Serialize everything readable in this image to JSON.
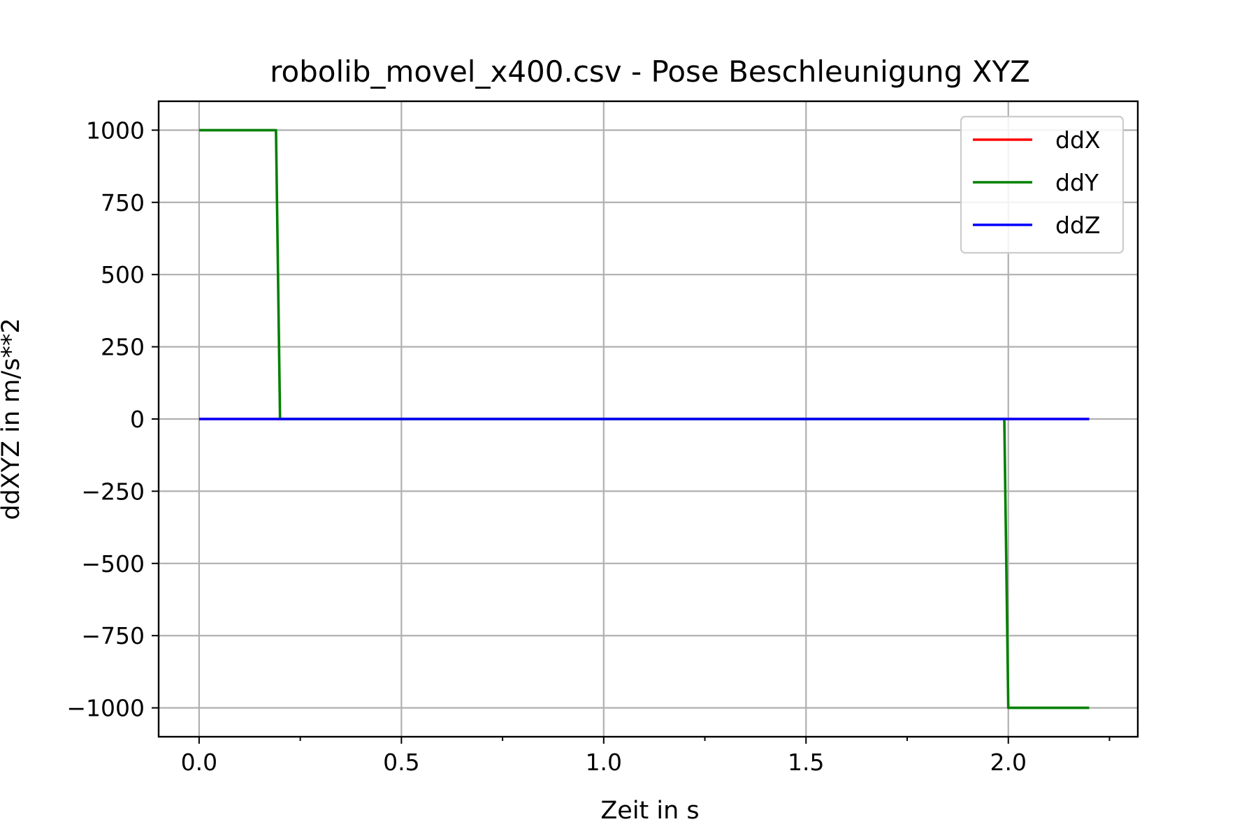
{
  "chart_data": {
    "type": "line",
    "title": "robolib_movel_x400.csv - Pose Beschleunigung XYZ",
    "xlabel": "Zeit in s",
    "ylabel": "ddXYZ in m/s**2",
    "xlim": [
      -0.1,
      2.32
    ],
    "ylim": [
      -1100,
      1100
    ],
    "x_ticks": [
      0.0,
      0.5,
      1.0,
      1.5,
      2.0
    ],
    "x_tick_labels": [
      "0.0",
      "0.5",
      "1.0",
      "1.5",
      "2.0"
    ],
    "x_minor_ticks": [
      0.25,
      0.75,
      1.25,
      1.75,
      2.25
    ],
    "y_ticks": [
      1000,
      750,
      500,
      250,
      0,
      -250,
      -500,
      -750,
      -1000
    ],
    "y_tick_labels": [
      "1000",
      "750",
      "500",
      "250",
      "0",
      "−250",
      "−500",
      "−750",
      "−1000"
    ],
    "grid": true,
    "legend_position": "top-right",
    "series": [
      {
        "name": "ddX",
        "color": "#ff0000",
        "x": [
          0.0,
          2.2
        ],
        "y": [
          0,
          0
        ]
      },
      {
        "name": "ddY",
        "color": "#008000",
        "x": [
          0.0,
          0.19,
          0.2,
          1.99,
          2.0,
          2.2
        ],
        "y": [
          1000,
          1000,
          0,
          0,
          -1000,
          -1000
        ]
      },
      {
        "name": "ddZ",
        "color": "#0000ff",
        "x": [
          0.0,
          2.2
        ],
        "y": [
          0,
          0
        ]
      }
    ]
  }
}
